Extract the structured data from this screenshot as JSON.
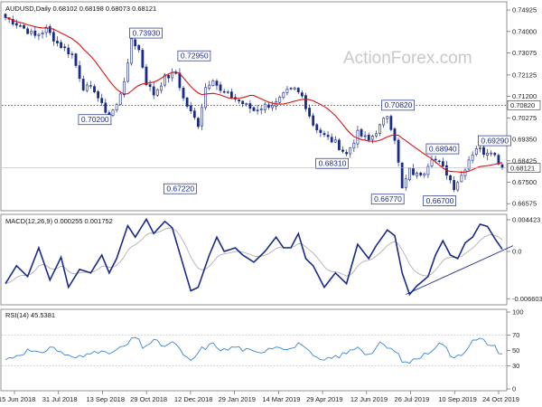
{
  "chart_data": {
    "type": "candlestick",
    "symbol_header": "AUDUSD,Daily  0.68102 0.68198 0.68073 0.68121",
    "watermark": "ActionForex.com",
    "colors": {
      "up": "#1a2a8a",
      "down": "#1a2a8a",
      "ma": "#e01010",
      "macd": "#1a2a8a",
      "signal": "#a8a8a8",
      "rsi": "#3a86d8",
      "trendline": "#1a2a8a",
      "frame": "#777777"
    },
    "x_tick_labels": [
      "15 Jun 2018",
      "31 Jul 2018",
      "13 Sep 2018",
      "29 Oct 2018",
      "12 Dec 2018",
      "29 Jan 2019",
      "14 Mar 2019",
      "29 Apr 2019",
      "12 Jun 2019",
      "26 Jul 2019",
      "10 Sep 2019",
      "24 Oct 2019"
    ],
    "price_axis": {
      "range": [
        0.6635,
        0.752
      ],
      "ticks": [
        "0.74925",
        "0.74000",
        "0.73075",
        "0.72125",
        "0.71200",
        "0.70275",
        "0.69350",
        "0.68425",
        "0.67500",
        "0.66575"
      ],
      "current": "0.68121",
      "hline_label": "0.70820",
      "hline_value": 0.7082
    },
    "annotations": [
      {
        "label": "0.73930",
        "bar": 34,
        "price": 0.7393
      },
      {
        "label": "0.72950",
        "bar": 47,
        "price": 0.7295
      },
      {
        "label": "0.70200",
        "bar": 28,
        "price": 0.702
      },
      {
        "label": "0.67220",
        "bar": 51,
        "price": 0.6722
      },
      {
        "label": "0.70820",
        "bar": 102,
        "price": 0.7082
      },
      {
        "label": "0.68310",
        "bar": 92,
        "price": 0.6831
      },
      {
        "label": "0.68940",
        "bar": 114,
        "price": 0.6894
      },
      {
        "label": "0.66770",
        "bar": 107,
        "price": 0.6677
      },
      {
        "label": "0.69290",
        "bar": 128,
        "price": 0.6929
      },
      {
        "label": "0.66700",
        "bar": 121,
        "price": 0.667
      }
    ],
    "price_anchors": [
      [
        0,
        0.746
      ],
      [
        4,
        0.7425
      ],
      [
        8,
        0.738
      ],
      [
        11,
        0.741
      ],
      [
        14,
        0.735
      ],
      [
        18,
        0.73
      ],
      [
        21,
        0.716
      ],
      [
        24,
        0.715
      ],
      [
        26,
        0.708
      ],
      [
        28,
        0.704
      ],
      [
        30,
        0.708
      ],
      [
        33,
        0.725
      ],
      [
        34,
        0.737
      ],
      [
        36,
        0.732
      ],
      [
        38,
        0.718
      ],
      [
        40,
        0.713
      ],
      [
        43,
        0.72
      ],
      [
        46,
        0.722
      ],
      [
        48,
        0.711
      ],
      [
        50,
        0.705
      ],
      [
        52,
        0.7
      ],
      [
        54,
        0.716
      ],
      [
        56,
        0.72
      ],
      [
        58,
        0.714
      ],
      [
        61,
        0.712
      ],
      [
        64,
        0.709
      ],
      [
        67,
        0.706
      ],
      [
        70,
        0.708
      ],
      [
        73,
        0.709
      ],
      [
        76,
        0.714
      ],
      [
        78,
        0.715
      ],
      [
        80,
        0.712
      ],
      [
        83,
        0.7
      ],
      [
        86,
        0.695
      ],
      [
        89,
        0.692
      ],
      [
        92,
        0.687
      ],
      [
        95,
        0.696
      ],
      [
        98,
        0.693
      ],
      [
        101,
        0.699
      ],
      [
        103,
        0.704
      ],
      [
        105,
        0.694
      ],
      [
        107,
        0.672
      ],
      [
        109,
        0.68
      ],
      [
        111,
        0.678
      ],
      [
        113,
        0.68
      ],
      [
        115,
        0.686
      ],
      [
        117,
        0.683
      ],
      [
        119,
        0.679
      ],
      [
        121,
        0.673
      ],
      [
        123,
        0.678
      ],
      [
        125,
        0.685
      ],
      [
        127,
        0.69
      ],
      [
        129,
        0.688
      ],
      [
        131,
        0.689
      ],
      [
        133,
        0.684
      ],
      [
        134,
        0.6812
      ]
    ],
    "macd": {
      "label": "MACD(12,26,9) 0.000255 0.001752",
      "range": [
        -0.0072,
        0.0048
      ],
      "ticks": [
        "0.004423",
        "0.0",
        "-0.006603"
      ],
      "current": "0.0"
    },
    "macd_anchors": [
      [
        0,
        -0.0045
      ],
      [
        3,
        -0.002
      ],
      [
        6,
        -0.0035
      ],
      [
        9,
        0.0005
      ],
      [
        12,
        -0.004
      ],
      [
        15,
        -0.0008
      ],
      [
        17,
        -0.005
      ],
      [
        20,
        -0.0025
      ],
      [
        23,
        -0.003
      ],
      [
        26,
        -0.0005
      ],
      [
        28,
        -0.003
      ],
      [
        30,
        -0.001
      ],
      [
        33,
        0.0036
      ],
      [
        35,
        0.002
      ],
      [
        38,
        0.0045
      ],
      [
        40,
        0.0025
      ],
      [
        43,
        0.0042
      ],
      [
        45,
        0.0033
      ],
      [
        48,
        -0.002
      ],
      [
        50,
        -0.0055
      ],
      [
        52,
        -0.005
      ],
      [
        55,
        -0.0005
      ],
      [
        57,
        0.002
      ],
      [
        59,
        0.0
      ],
      [
        62,
        0.0005
      ],
      [
        64,
        -0.0005
      ],
      [
        67,
        -0.0015
      ],
      [
        70,
        0.0
      ],
      [
        73,
        0.002
      ],
      [
        75,
        0.0005
      ],
      [
        77,
        0.0005
      ],
      [
        79,
        0.0025
      ],
      [
        81,
        -0.001
      ],
      [
        83,
        -0.002
      ],
      [
        86,
        -0.005
      ],
      [
        89,
        -0.003
      ],
      [
        92,
        -0.0045
      ],
      [
        95,
        0.001
      ],
      [
        98,
        -0.001
      ],
      [
        100,
        0.0008
      ],
      [
        103,
        0.003
      ],
      [
        105,
        0.0022
      ],
      [
        107,
        -0.003
      ],
      [
        109,
        -0.006
      ],
      [
        111,
        -0.0048
      ],
      [
        114,
        -0.0035
      ],
      [
        116,
        -0.0005
      ],
      [
        118,
        0.0015
      ],
      [
        120,
        -0.0005
      ],
      [
        122,
        -0.001
      ],
      [
        124,
        0.0012
      ],
      [
        126,
        0.002
      ],
      [
        128,
        0.0038
      ],
      [
        130,
        0.0035
      ],
      [
        132,
        0.0018
      ],
      [
        134,
        0.0003
      ]
    ],
    "rsi": {
      "label": "RSI(14) 45.5381",
      "range": [
        0,
        100
      ],
      "ticks": [
        "100",
        "70",
        "50",
        "30",
        "0"
      ],
      "current": "45.5381"
    },
    "rsi_anchors": [
      [
        0,
        38
      ],
      [
        3,
        44
      ],
      [
        6,
        50
      ],
      [
        9,
        45
      ],
      [
        12,
        55
      ],
      [
        15,
        48
      ],
      [
        18,
        40
      ],
      [
        21,
        42
      ],
      [
        24,
        52
      ],
      [
        27,
        45
      ],
      [
        30,
        50
      ],
      [
        33,
        58
      ],
      [
        35,
        68
      ],
      [
        37,
        55
      ],
      [
        40,
        62
      ],
      [
        43,
        56
      ],
      [
        46,
        60
      ],
      [
        48,
        42
      ],
      [
        50,
        36
      ],
      [
        53,
        52
      ],
      [
        56,
        58
      ],
      [
        59,
        50
      ],
      [
        62,
        55
      ],
      [
        65,
        50
      ],
      [
        68,
        46
      ],
      [
        71,
        54
      ],
      [
        74,
        56
      ],
      [
        77,
        52
      ],
      [
        80,
        60
      ],
      [
        83,
        40
      ],
      [
        86,
        36
      ],
      [
        89,
        42
      ],
      [
        92,
        46
      ],
      [
        95,
        56
      ],
      [
        98,
        44
      ],
      [
        101,
        58
      ],
      [
        104,
        52
      ],
      [
        106,
        44
      ],
      [
        108,
        32
      ],
      [
        110,
        38
      ],
      [
        113,
        44
      ],
      [
        116,
        56
      ],
      [
        118,
        60
      ],
      [
        120,
        42
      ],
      [
        123,
        46
      ],
      [
        126,
        62
      ],
      [
        128,
        64
      ],
      [
        130,
        60
      ],
      [
        132,
        54
      ],
      [
        134,
        45
      ]
    ],
    "trendline_macd": [
      [
        108,
        -0.006
      ],
      [
        134,
        0.0003
      ]
    ]
  }
}
